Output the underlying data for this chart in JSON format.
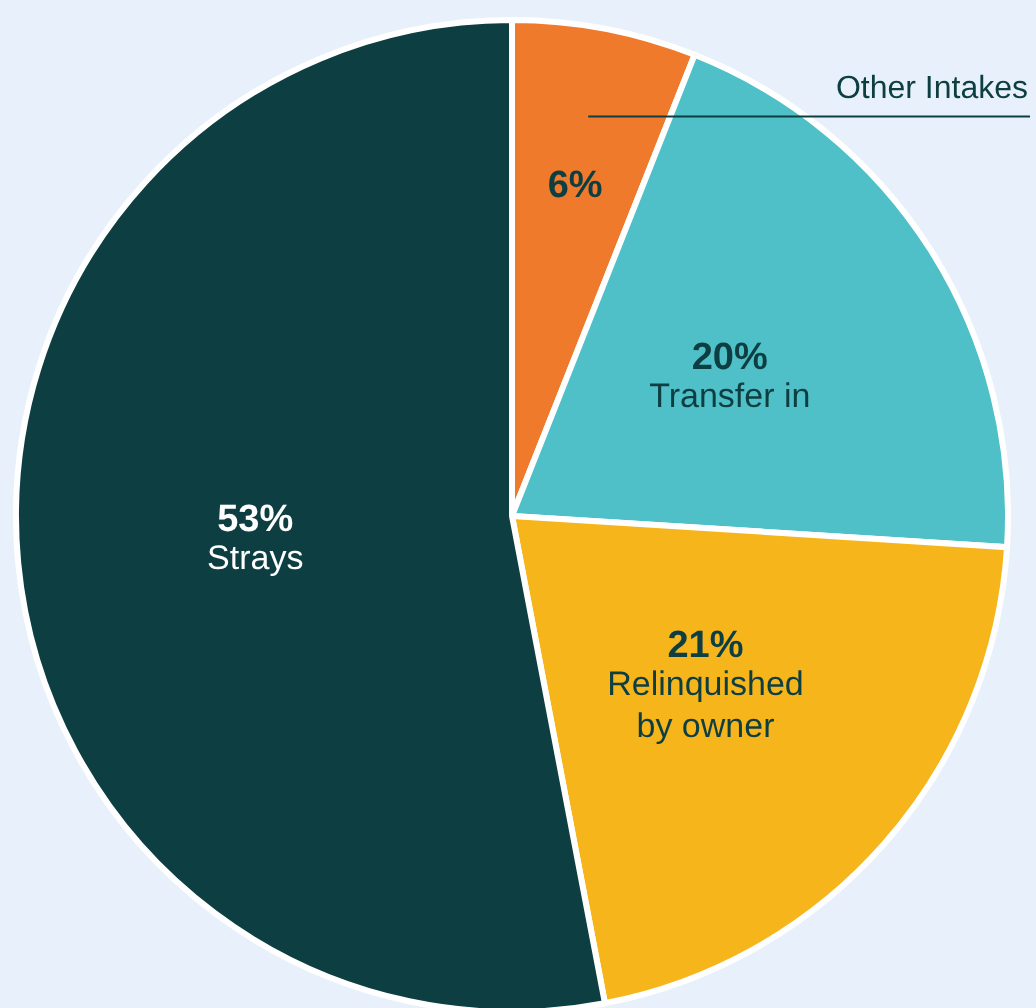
{
  "chart_data": {
    "type": "pie",
    "categories": [
      "Other Intakes",
      "Transfer in",
      "Relinquished by owner",
      "Strays"
    ],
    "values": [
      6,
      20,
      21,
      53
    ],
    "colors": [
      "#ef7a2c",
      "#4fc0c8",
      "#f7b51c",
      "#0d3e42"
    ],
    "value_labels": [
      "6%",
      "20%",
      "21%",
      "53%"
    ]
  }
}
